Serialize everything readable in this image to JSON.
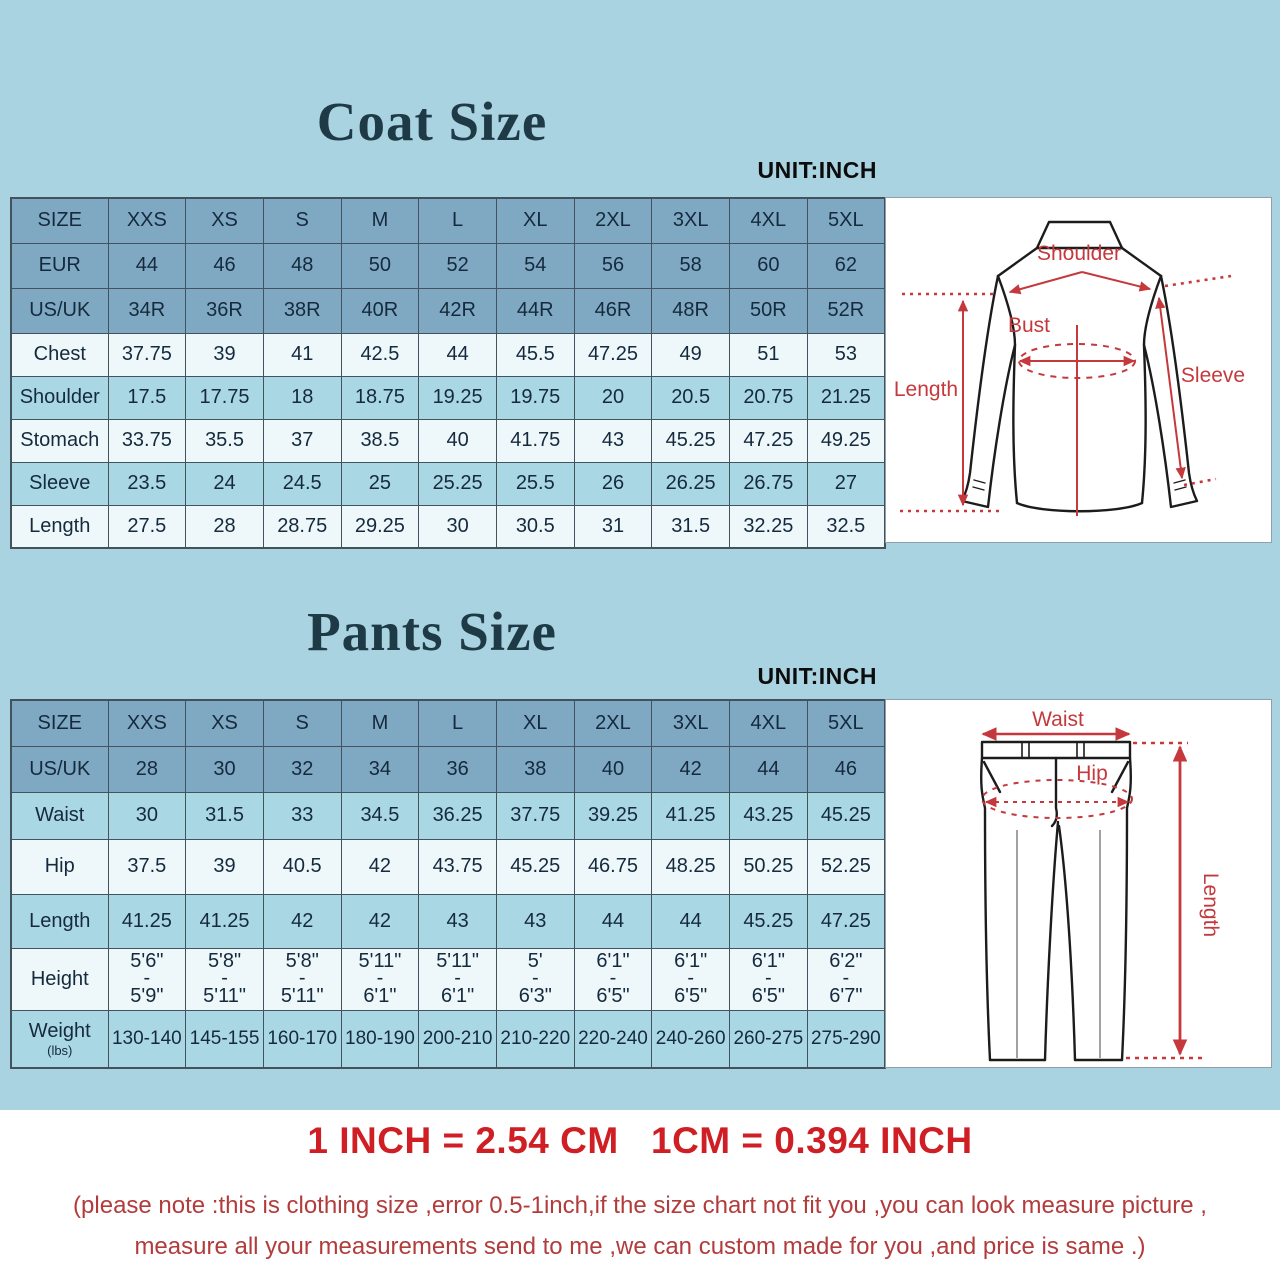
{
  "colors": {
    "background": "#a9d3e0",
    "header_row": "#7fa8c2",
    "row_medium": "#aad7e4",
    "row_light": "#eef8fb",
    "grid_border": "#43525d",
    "title_text": "#1e3a46",
    "diagram_red": "#c5393d",
    "formula_red": "#cf1e24",
    "note_red": "#b23c3c"
  },
  "coat": {
    "title": "Coat Size",
    "unit": "UNIT:INCH",
    "header_rows": [
      {
        "label": "SIZE",
        "values": [
          "XXS",
          "XS",
          "S",
          "M",
          "L",
          "XL",
          "2XL",
          "3XL",
          "4XL",
          "5XL"
        ]
      },
      {
        "label": "EUR",
        "values": [
          "44",
          "46",
          "48",
          "50",
          "52",
          "54",
          "56",
          "58",
          "60",
          "62"
        ]
      },
      {
        "label": "US/UK",
        "values": [
          "34R",
          "36R",
          "38R",
          "40R",
          "42R",
          "44R",
          "46R",
          "48R",
          "50R",
          "52R"
        ]
      }
    ],
    "rows": [
      {
        "label": "Chest",
        "values": [
          "37.75",
          "39",
          "41",
          "42.5",
          "44",
          "45.5",
          "47.25",
          "49",
          "51",
          "53"
        ]
      },
      {
        "label": "Shoulder",
        "values": [
          "17.5",
          "17.75",
          "18",
          "18.75",
          "19.25",
          "19.75",
          "20",
          "20.5",
          "20.75",
          "21.25"
        ]
      },
      {
        "label": "Stomach",
        "values": [
          "33.75",
          "35.5",
          "37",
          "38.5",
          "40",
          "41.75",
          "43",
          "45.25",
          "47.25",
          "49.25"
        ]
      },
      {
        "label": "Sleeve",
        "values": [
          "23.5",
          "24",
          "24.5",
          "25",
          "25.25",
          "25.5",
          "26",
          "26.25",
          "26.75",
          "27"
        ]
      },
      {
        "label": "Length",
        "values": [
          "27.5",
          "28",
          "28.75",
          "29.25",
          "30",
          "30.5",
          "31",
          "31.5",
          "32.25",
          "32.5"
        ]
      }
    ],
    "diagram": {
      "shoulder": "Shoulder",
      "bust": "Bust",
      "length": "Length",
      "sleeve": "Sleeve"
    }
  },
  "pants": {
    "title": "Pants Size",
    "unit": "UNIT:INCH",
    "header_rows": [
      {
        "label": "SIZE",
        "values": [
          "XXS",
          "XS",
          "S",
          "M",
          "L",
          "XL",
          "2XL",
          "3XL",
          "4XL",
          "5XL"
        ]
      },
      {
        "label": "US/UK",
        "values": [
          "28",
          "30",
          "32",
          "34",
          "36",
          "38",
          "40",
          "42",
          "44",
          "46"
        ]
      }
    ],
    "rows": [
      {
        "label": "Waist",
        "values": [
          "30",
          "31.5",
          "33",
          "34.5",
          "36.25",
          "37.75",
          "39.25",
          "41.25",
          "43.25",
          "45.25"
        ]
      },
      {
        "label": "Hip",
        "values": [
          "37.5",
          "39",
          "40.5",
          "42",
          "43.75",
          "45.25",
          "46.75",
          "48.25",
          "50.25",
          "52.25"
        ]
      },
      {
        "label": "Length",
        "values": [
          "41.25",
          "41.25",
          "42",
          "42",
          "43",
          "43",
          "44",
          "44",
          "45.25",
          "47.25"
        ]
      },
      {
        "label": "Height",
        "values": [
          "5'6\"\n-\n5'9\"",
          "5'8\"\n-\n5'11\"",
          "5'8\"\n-\n5'11\"",
          "5'11\"\n-\n6'1\"",
          "5'11\"\n-\n6'1\"",
          "5'\n-\n6'3\"",
          "6'1\"\n-\n6'5\"",
          "6'1\"\n-\n6'5\"",
          "6'1\"\n-\n6'5\"",
          "6'2\"\n-\n6'7\""
        ]
      },
      {
        "label": "Weight",
        "sublabel": "(lbs)",
        "values": [
          "130-140",
          "145-155",
          "160-170",
          "180-190",
          "200-210",
          "210-220",
          "220-240",
          "240-260",
          "260-275",
          "275-290"
        ]
      }
    ],
    "diagram": {
      "waist": "Waist",
      "hip": "Hip",
      "length": "Length"
    }
  },
  "footer": {
    "formula": "1 INCH = 2.54 CM   1CM = 0.394 INCH",
    "note_line1": "(please note :this is clothing size ,error 0.5-1inch,if the size chart not fit you ,you can look measure picture ,",
    "note_line2": "measure all your measurements send to me ,we can custom made for you ,and price is same .)"
  }
}
